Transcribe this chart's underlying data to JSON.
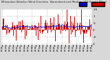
{
  "title": "Milwaukee Weather Wind Direction  Normalized and Median  (24 Hours) (New)",
  "title_fontsize": 2.8,
  "bg_color": "#d8d8d8",
  "plot_bg_color": "#ffffff",
  "bar_color": "#cc0000",
  "median_color": "#0000bb",
  "ylim": [
    -1.1,
    1.5
  ],
  "yticks": [
    -1.0,
    -0.5,
    0.0,
    0.5,
    1.0,
    1.5
  ],
  "ytick_labels": [
    "-1",
    "-.5",
    "0",
    ".5",
    "1",
    "1.5"
  ],
  "ytick_fontsize": 3.0,
  "xtick_fontsize": 2.0,
  "grid_color": "#bbbbbb",
  "n_vgrid": 6,
  "n_points": 288,
  "seed": 42
}
